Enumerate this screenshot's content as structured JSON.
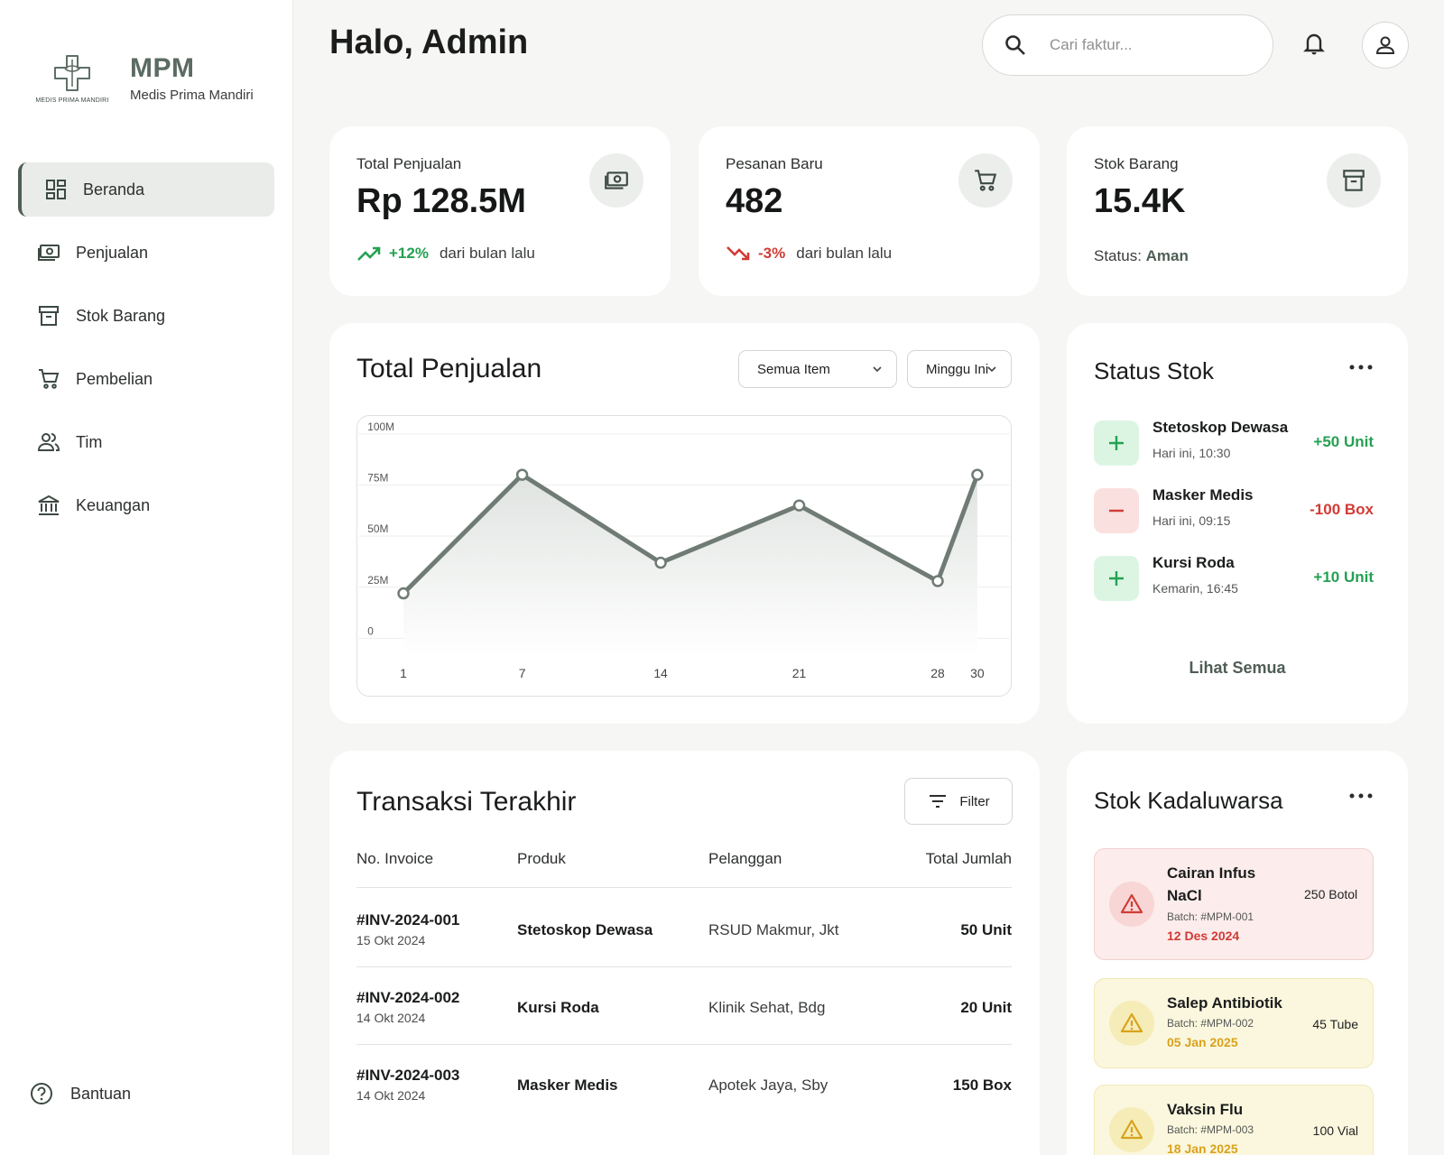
{
  "brand": {
    "abbr": "MPM",
    "name": "Medis Prima Mandiri",
    "logo_text": "MEDIS PRIMA MANDIRI"
  },
  "nav": {
    "items": [
      {
        "label": "Beranda",
        "icon": "dashboard-icon",
        "active": true
      },
      {
        "label": "Penjualan",
        "icon": "cash-icon"
      },
      {
        "label": "Stok Barang",
        "icon": "archive-icon"
      },
      {
        "label": "Pembelian",
        "icon": "cart-icon"
      },
      {
        "label": "Tim",
        "icon": "team-icon"
      },
      {
        "label": "Keuangan",
        "icon": "bank-icon"
      }
    ],
    "help_label": "Bantuan"
  },
  "header": {
    "greeting": "Halo, Admin",
    "search_placeholder": "Cari faktur..."
  },
  "stats": [
    {
      "label": "Total Penjualan",
      "value": "Rp 128.5M",
      "change": "+12%",
      "change_text": "dari bulan lalu",
      "icon": "cash-icon"
    },
    {
      "label": "Pesanan Baru",
      "value": "482",
      "change": "-3%",
      "change_text": "dari bulan lalu",
      "icon": "cart-icon"
    },
    {
      "label": "Stok Barang",
      "value": "15.4K",
      "status_label": "Status:",
      "status_value": "Aman",
      "icon": "archive-icon"
    }
  ],
  "sales_chart": {
    "title": "Total Penjualan",
    "filter_item": "Semua Item",
    "filter_period": "Minggu Ini"
  },
  "chart_data": {
    "type": "area",
    "title": "Total Penjualan",
    "x": [
      1,
      7,
      14,
      21,
      28,
      30
    ],
    "values": [
      22,
      80,
      37,
      65,
      28,
      80
    ],
    "x_ticks": [
      "1",
      "7",
      "14",
      "21",
      "28",
      "30"
    ],
    "y_ticks": [
      "100M",
      "75M",
      "50M",
      "25M",
      "0"
    ],
    "y_tick_values": [
      100,
      75,
      50,
      25,
      0
    ],
    "ylim": [
      0,
      100
    ],
    "xlim": [
      1,
      30
    ],
    "grid": true,
    "colors": {
      "line": "#6f7b74",
      "fill": "#e8ebe9"
    }
  },
  "stock_status": {
    "title": "Status Stok",
    "items": [
      {
        "name": "Stetoskop Dewasa",
        "time": "Hari ini, 10:30",
        "qty": "+50 Unit",
        "type": "plus"
      },
      {
        "name": "Masker Medis",
        "time": "Hari ini, 09:15",
        "qty": "-100 Box",
        "type": "minus"
      },
      {
        "name": "Kursi Roda",
        "time": "Kemarin, 16:45",
        "qty": "+10 Unit",
        "type": "plus"
      }
    ],
    "see_all": "Lihat Semua"
  },
  "transactions": {
    "title": "Transaksi Terakhir",
    "filter_label": "Filter",
    "columns": [
      "No. Invoice",
      "Produk",
      "Pelanggan",
      "Total Jumlah"
    ],
    "rows": [
      {
        "invoice": "#INV-2024-001",
        "date": "15 Okt 2024",
        "product": "Stetoskop Dewasa",
        "customer": "RSUD Makmur, Jkt",
        "total": "50 Unit"
      },
      {
        "invoice": "#INV-2024-002",
        "date": "14 Okt 2024",
        "product": "Kursi Roda",
        "customer": "Klinik Sehat, Bdg",
        "total": "20 Unit"
      },
      {
        "invoice": "#INV-2024-003",
        "date": "14 Okt 2024",
        "product": "Masker Medis",
        "customer": "Apotek Jaya, Sby",
        "total": "150 Box"
      }
    ]
  },
  "expired": {
    "title": "Stok Kadaluwarsa",
    "items": [
      {
        "name": "Cairan Infus NaCl",
        "batch": "Batch: #MPM-001",
        "date": "12 Des 2024",
        "qty": "250 Botol",
        "level": "danger"
      },
      {
        "name": "Salep Antibiotik",
        "batch": "Batch: #MPM-002",
        "date": "05 Jan 2025",
        "qty": "45 Tube",
        "level": "warning"
      },
      {
        "name": "Vaksin Flu",
        "batch": "Batch: #MPM-003",
        "date": "18 Jan 2025",
        "qty": "100 Vial",
        "level": "warning"
      }
    ]
  },
  "colors": {
    "accent": "#4f5e55",
    "positive": "#24a152",
    "negative": "#d13b35",
    "warning": "#d9a21b"
  }
}
